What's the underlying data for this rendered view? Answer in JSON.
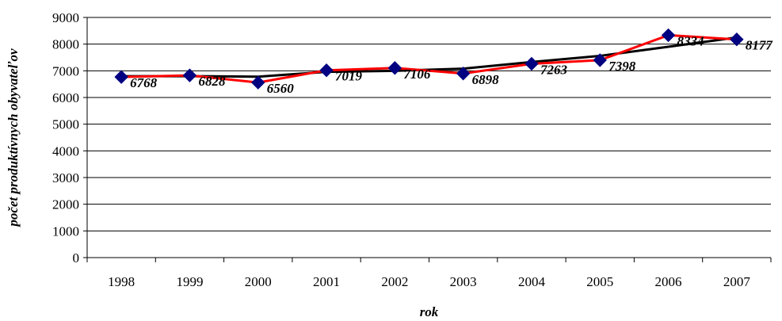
{
  "chart_data": {
    "type": "line",
    "title": "",
    "xlabel": "rok",
    "ylabel": "počet  produktívnych obyvateľov",
    "categories": [
      "1998",
      "1999",
      "2000",
      "2001",
      "2002",
      "2003",
      "2004",
      "2005",
      "2006",
      "2007"
    ],
    "y_ticks": [
      "0",
      "1000",
      "2000",
      "3000",
      "4000",
      "5000",
      "6000",
      "7000",
      "8000",
      "9000"
    ],
    "ylim": [
      0,
      9000
    ],
    "grid": "horizontal",
    "legend": "none",
    "series": [
      {
        "values": [
          6768,
          6828,
          6560,
          7019,
          7106,
          6898,
          7263,
          7398,
          8334,
          8177
        ],
        "labels": [
          "6768",
          "6828",
          "6560",
          "7019",
          "7106",
          "6898",
          "7263",
          "7398",
          "8334",
          "8177"
        ],
        "line_color": "#ff0000",
        "marker": "diamond",
        "marker_color": "#000080"
      }
    ],
    "trendline": {
      "type": "moving-average",
      "color": "#000000",
      "values": [
        6800,
        6800,
        6780,
        6960,
        7000,
        7080,
        7330,
        7560,
        7900,
        8250
      ]
    }
  }
}
